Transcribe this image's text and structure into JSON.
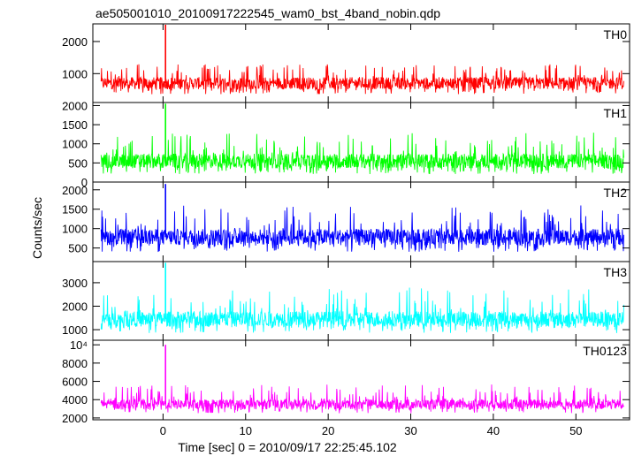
{
  "chart_data": {
    "type": "line",
    "title": "ae505001010_20100917222545_wam0_bst_4band_nobin.qdp",
    "xlabel": "Time [sec] 0 = 2010/09/17 22:25:45.102",
    "ylabel": "Counts/sec",
    "xlim": [
      -8.5,
      56.5
    ],
    "x_ticks": [
      0,
      10,
      20,
      30,
      40,
      50
    ],
    "x_tick_labels": [
      "0",
      "10",
      "20",
      "30",
      "40",
      "50"
    ],
    "panels": [
      {
        "name": "TH0",
        "color": "#ff0000",
        "ylim": [
          100,
          2550
        ],
        "y_ticks": [
          1000,
          2000
        ],
        "y_tick_labels": [
          "1000",
          "2000"
        ],
        "series_base": 700,
        "noise_spread": 190,
        "spike_max": 1300,
        "burst": {
          "x": 0.3,
          "peak": 2550
        }
      },
      {
        "name": "TH1",
        "color": "#00ff00",
        "ylim": [
          0,
          2080
        ],
        "y_ticks": [
          0,
          500,
          1000,
          1500,
          2000
        ],
        "y_tick_labels": [
          "0",
          "500",
          "1000",
          "1500",
          "2000"
        ],
        "series_base": 550,
        "noise_spread": 190,
        "spike_max": 1300,
        "burst": {
          "x": 0.3,
          "peak": 2050
        }
      },
      {
        "name": "TH2",
        "color": "#0000ff",
        "ylim": [
          150,
          2200
        ],
        "y_ticks": [
          500,
          1000,
          1500,
          2000
        ],
        "y_tick_labels": [
          "500",
          "1000",
          "1500",
          "2000"
        ],
        "series_base": 780,
        "noise_spread": 210,
        "spike_max": 1600,
        "burst": {
          "x": 0.3,
          "peak": 2150
        }
      },
      {
        "name": "TH3",
        "color": "#00ffff",
        "ylim": [
          550,
          3900
        ],
        "y_ticks": [
          1000,
          2000,
          3000
        ],
        "y_tick_labels": [
          "1000",
          "2000",
          "3000"
        ],
        "series_base": 1450,
        "noise_spread": 330,
        "spike_max": 2800,
        "burst": {
          "x": 0.3,
          "peak": 3850
        }
      },
      {
        "name": "TH0123",
        "color": "#ff00ff",
        "ylim": [
          1800,
          10500
        ],
        "y_ticks": [
          2000,
          4000,
          6000,
          8000,
          10000
        ],
        "y_tick_labels": [
          "2000",
          "4000",
          "6000",
          "8000",
          "10⁴"
        ],
        "series_base": 3500,
        "noise_spread": 550,
        "spike_max": 5700,
        "burst": {
          "x": 0.3,
          "peak": 10000
        }
      }
    ]
  }
}
